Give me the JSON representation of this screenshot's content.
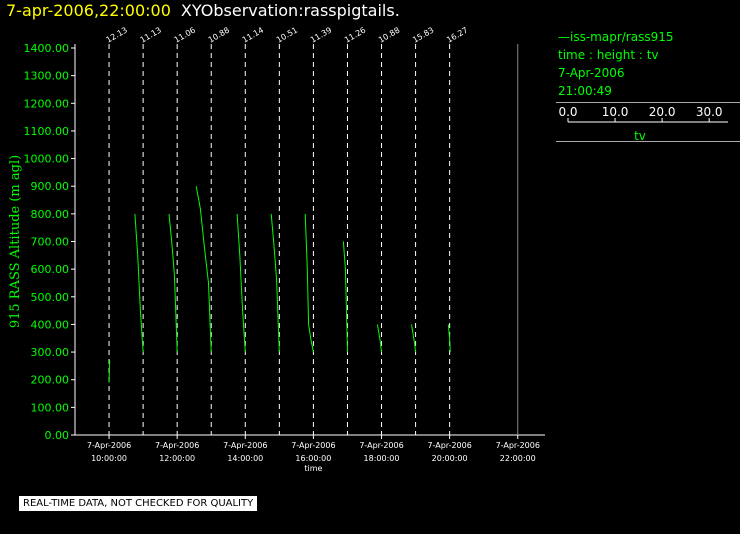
{
  "header": {
    "timestamp": "7-apr-2006,22:00:00",
    "title": "XYObservation:rasspigtails."
  },
  "legend": {
    "series_label": "—iss-mapr/rass915",
    "fields": "time : height : tv",
    "date": "7-Apr-2006",
    "time": "21:00:49",
    "colorbar": {
      "ticks": [
        "0.0",
        "10.0",
        "20.0",
        "30.0"
      ],
      "tick_values": [
        0,
        10,
        20,
        30
      ],
      "range": [
        0,
        34
      ],
      "label": "tv"
    }
  },
  "note": "REAL-TIME DATA, NOT CHECKED FOR QUALITY",
  "colors": {
    "series": "#00ff00",
    "axis": "#ffffff",
    "timestamp": "#ffff00"
  },
  "chart_data": {
    "type": "line",
    "ylabel": "915 RASS Altitude (m agl)",
    "xlabel": "time",
    "ylim": [
      0,
      1400
    ],
    "yticks": [
      0,
      100,
      200,
      300,
      400,
      500,
      600,
      700,
      800,
      900,
      1000,
      1100,
      1200,
      1300,
      1400
    ],
    "ytick_labels": [
      "0.00",
      "100.00",
      "200.00",
      "300.00",
      "400.00",
      "500.00",
      "600.00",
      "700.00",
      "800.00",
      "900.00",
      "1000.00",
      "1100.00",
      "1200.00",
      "1300.00",
      "1400.00"
    ],
    "xlim_hours": [
      9.0,
      22.8
    ],
    "xticks": [
      {
        "hour": 10,
        "date": "7-Apr-2006",
        "time": "10:00:00"
      },
      {
        "hour": 12,
        "date": "7-Apr-2006",
        "time": "12:00:00"
      },
      {
        "hour": 14,
        "date": "7-Apr-2006",
        "time": "14:00:00"
      },
      {
        "hour": 16,
        "date": "7-Apr-2006",
        "time": "16:00:00"
      },
      {
        "hour": 18,
        "date": "7-Apr-2006",
        "time": "18:00:00"
      },
      {
        "hour": 20,
        "date": "7-Apr-2006",
        "time": "20:00:00"
      },
      {
        "hour": 22,
        "date": "7-Apr-2006",
        "time": "22:00:00"
      }
    ],
    "profiles": [
      {
        "hour": 10,
        "label": "12.13",
        "x": [
          10.0,
          10.02
        ],
        "y": [
          190,
          270
        ]
      },
      {
        "hour": 11,
        "label": "11.13",
        "x": [
          10.76,
          10.84,
          10.92,
          11.0
        ],
        "y": [
          800,
          650,
          450,
          300
        ]
      },
      {
        "hour": 12,
        "label": "11.06",
        "x": [
          11.76,
          11.84,
          11.92,
          12.0
        ],
        "y": [
          800,
          700,
          580,
          300
        ]
      },
      {
        "hour": 13,
        "label": "10.88",
        "x": [
          12.56,
          12.68,
          12.8,
          12.92,
          13.0
        ],
        "y": [
          900,
          820,
          680,
          550,
          300
        ]
      },
      {
        "hour": 14,
        "label": "11.14",
        "x": [
          13.76,
          13.84,
          13.92,
          14.0
        ],
        "y": [
          800,
          650,
          450,
          300
        ]
      },
      {
        "hour": 15,
        "label": "10.51",
        "x": [
          14.76,
          14.84,
          14.92,
          15.0
        ],
        "y": [
          800,
          690,
          560,
          300
        ]
      },
      {
        "hour": 16,
        "label": "11.39",
        "x": [
          15.76,
          15.82,
          15.86,
          15.92,
          16.0
        ],
        "y": [
          800,
          600,
          400,
          350,
          300
        ]
      },
      {
        "hour": 17,
        "label": "11.26",
        "x": [
          16.88,
          16.94,
          17.0
        ],
        "y": [
          700,
          600,
          300
        ]
      },
      {
        "hour": 18,
        "label": "10.88",
        "x": [
          17.88,
          17.96,
          18.0
        ],
        "y": [
          400,
          340,
          300
        ]
      },
      {
        "hour": 19,
        "label": "15.83",
        "x": [
          18.88,
          18.96,
          19.0
        ],
        "y": [
          400,
          340,
          300
        ]
      },
      {
        "hour": 20,
        "label": "16.27",
        "x": [
          19.96,
          20.0,
          20.02
        ],
        "y": [
          400,
          350,
          300
        ]
      }
    ]
  }
}
